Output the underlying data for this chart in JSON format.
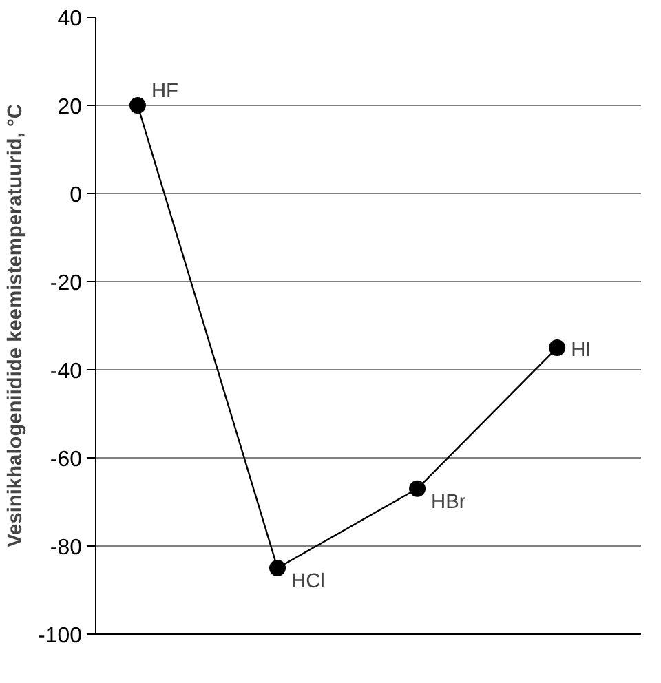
{
  "chart_data": {
    "type": "line",
    "ylabel": "Vesinikhalogeniidide keemistemperatuurid, °C",
    "categories": [
      null,
      null,
      null,
      null
    ],
    "series": [
      {
        "color": "#000000",
        "values": [
          20,
          -85,
          -67,
          -35
        ]
      }
    ],
    "ylim": [
      -100,
      40
    ],
    "yticks": [
      -100,
      -80,
      -60,
      -40,
      -20,
      0,
      20,
      40
    ],
    "grid": "y",
    "marker": "circle",
    "tick_labels": "y",
    "annotations": [
      "HF",
      "HCl",
      "HBr",
      "HI"
    ]
  }
}
